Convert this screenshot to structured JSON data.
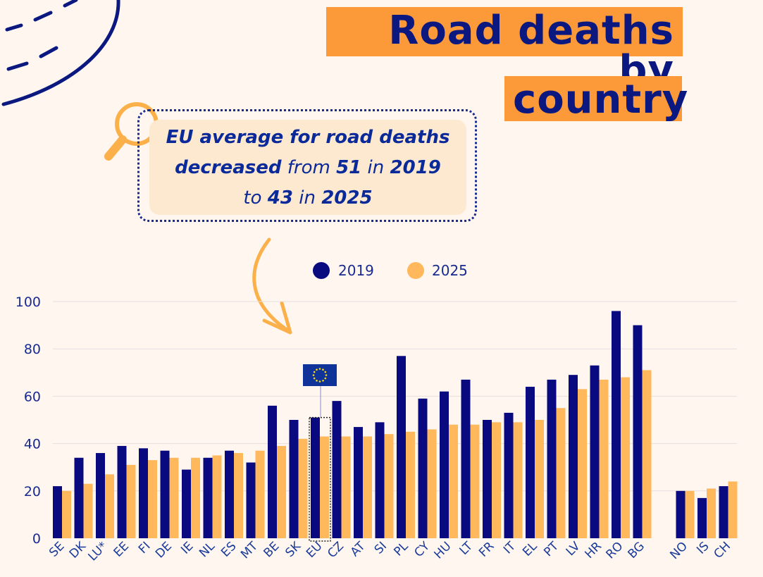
{
  "title": {
    "line1": "Road deaths by",
    "line2": "country"
  },
  "callout": {
    "parts": [
      {
        "t": "EU average for road deaths",
        "b": true
      },
      {
        "t": "decreased",
        "b": true
      },
      {
        "t": " from ",
        "b": false
      },
      {
        "t": "51",
        "b": true
      },
      {
        "t": " in ",
        "b": false
      },
      {
        "t": "2019",
        "b": true
      },
      {
        "t": "to ",
        "b": false
      },
      {
        "t": "43",
        "b": true
      },
      {
        "t": " in ",
        "b": false
      },
      {
        "t": "2025",
        "b": true
      }
    ]
  },
  "colors": {
    "s2019": "#0a0a80",
    "s2025": "#ffb85c",
    "accent": "#fc9a3a",
    "text": "#0b1f8c"
  },
  "chart_data": {
    "type": "bar",
    "categories": [
      "SE",
      "DK",
      "LU*",
      "EE",
      "FI",
      "DE",
      "IE",
      "NL",
      "ES",
      "MT",
      "BE",
      "SK",
      "EU",
      "CZ",
      "AT",
      "SI",
      "PL",
      "CY",
      "HU",
      "LT",
      "FR",
      "IT",
      "EL",
      "PT",
      "LV",
      "HR",
      "RO",
      "BG",
      "NO",
      "IS",
      "CH"
    ],
    "series": [
      {
        "name": "2019",
        "values": [
          22,
          34,
          36,
          39,
          38,
          37,
          29,
          34,
          37,
          32,
          56,
          50,
          51,
          58,
          47,
          49,
          77,
          59,
          62,
          67,
          50,
          53,
          64,
          67,
          69,
          73,
          96,
          90,
          20,
          17,
          22
        ]
      },
      {
        "name": "2025",
        "values": [
          20,
          23,
          27,
          31,
          33,
          34,
          34,
          35,
          36,
          37,
          39,
          42,
          43,
          43,
          43,
          44,
          45,
          46,
          48,
          48,
          49,
          49,
          50,
          55,
          63,
          67,
          68,
          71,
          20,
          21,
          24
        ]
      }
    ],
    "ylim": [
      0,
      100
    ],
    "yticks": [
      0,
      20,
      40,
      60,
      80,
      100
    ],
    "grid": true,
    "legend": "top-center",
    "highlight": "EU"
  }
}
